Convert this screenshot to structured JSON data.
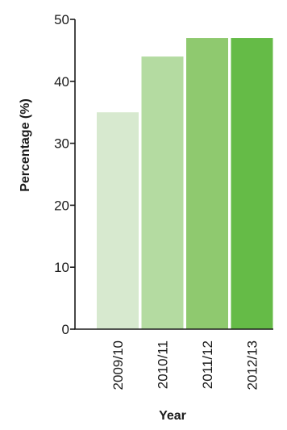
{
  "chart_data": {
    "type": "bar",
    "title": "",
    "xlabel": "Year",
    "ylabel": "Percentage (%)",
    "categories": [
      "2009/10",
      "2010/11",
      "2011/12",
      "2012/13"
    ],
    "values": [
      35,
      44,
      47,
      47
    ],
    "ylim": [
      0,
      50
    ],
    "yticks": [
      "0",
      "10",
      "20",
      "30",
      "40",
      "50"
    ],
    "bar_colors": [
      "#d7e9cf",
      "#b4dba1",
      "#8fc96f",
      "#65bb47"
    ],
    "grid": false,
    "legend": "none"
  }
}
